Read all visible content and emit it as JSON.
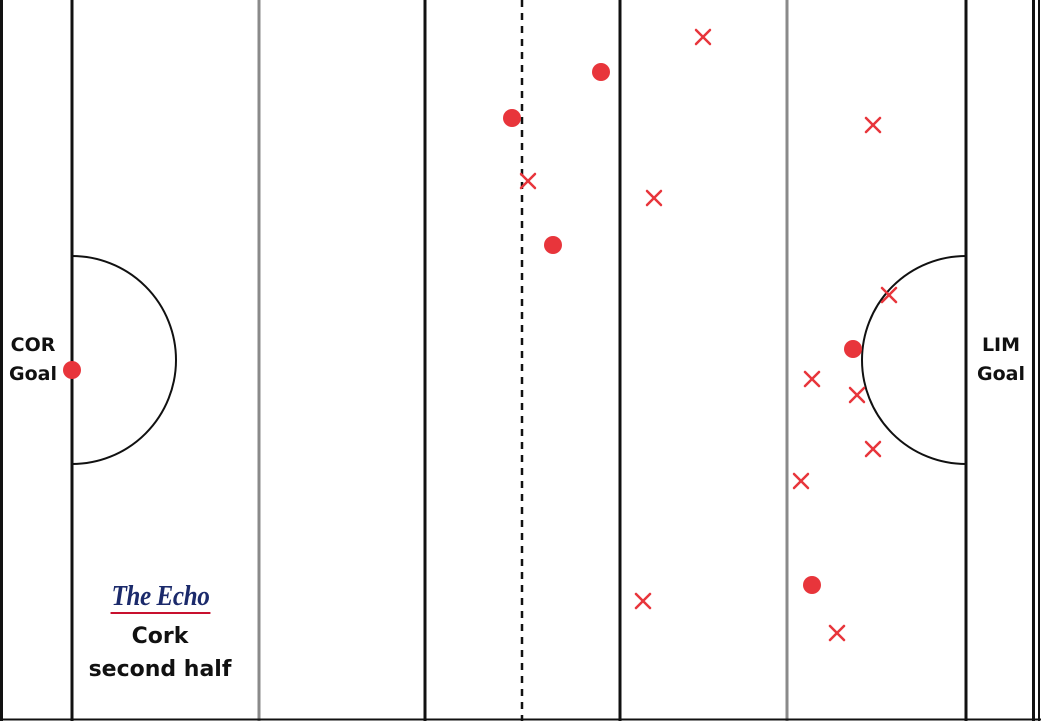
{
  "goals": {
    "left": {
      "team": "COR",
      "word": "Goal"
    },
    "right": {
      "team": "LIM",
      "word": "Goal"
    }
  },
  "branding": {
    "logo": "The Echo",
    "team": "Cork",
    "period": "second half"
  },
  "colors": {
    "marker": "#e8353b",
    "line_major": "#111111",
    "line_minor": "#8a8a8a",
    "logo_blue": "#1b2a6b",
    "logo_red": "#c8102e"
  },
  "legend_meaning": {
    "circle": "score",
    "cross": "miss"
  },
  "shots": [
    {
      "type": "circle"
    },
    {
      "type": "circle"
    },
    {
      "type": "circle"
    },
    {
      "type": "circle"
    },
    {
      "type": "circle"
    },
    {
      "type": "circle"
    },
    {
      "type": "cross"
    },
    {
      "type": "cross"
    },
    {
      "type": "cross"
    },
    {
      "type": "cross"
    },
    {
      "type": "cross"
    },
    {
      "type": "cross"
    },
    {
      "type": "cross"
    },
    {
      "type": "cross"
    },
    {
      "type": "cross"
    },
    {
      "type": "cross"
    },
    {
      "type": "cross"
    }
  ]
}
